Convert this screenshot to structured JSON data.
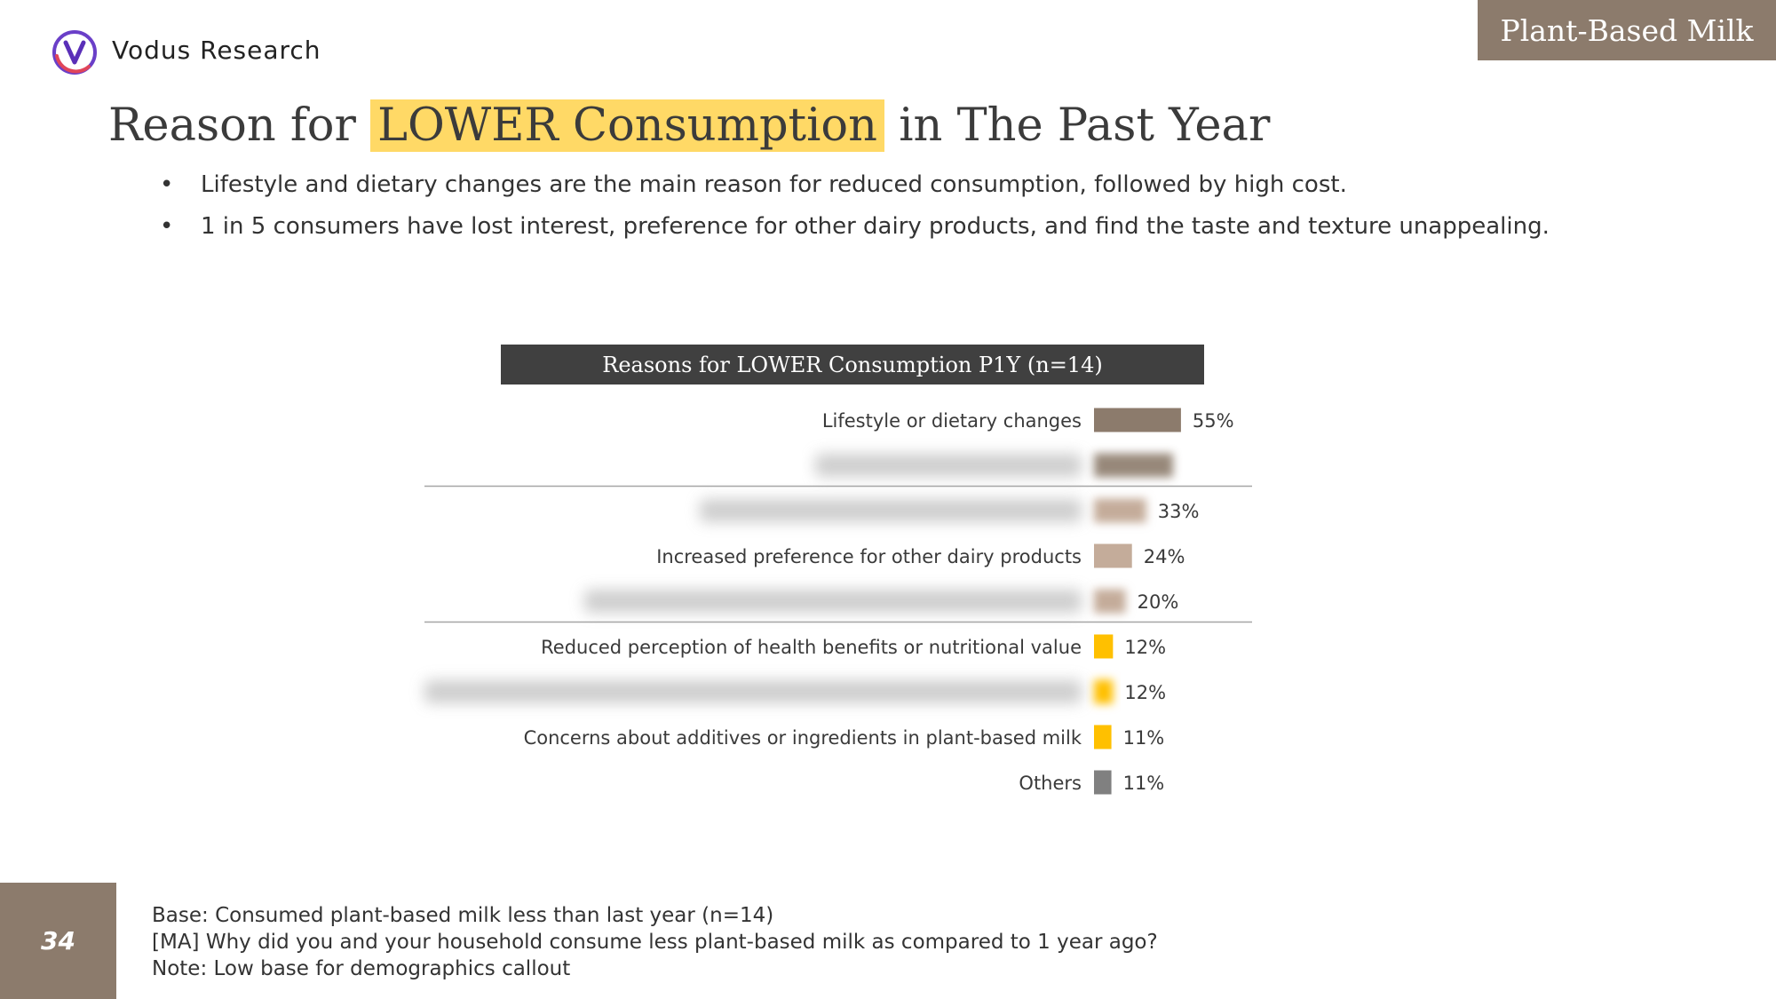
{
  "brand": {
    "name": "Vodus Research"
  },
  "tag": "Plant-Based Milk",
  "title": {
    "prefix": "Reason for ",
    "highlight": "LOWER Consumption",
    "suffix": " in The Past Year"
  },
  "bullets": [
    "Lifestyle and dietary changes are the main reason for reduced consumption, followed by high cost.",
    "1 in 5 consumers have lost interest, preference for other dairy products, and find the taste and texture unappealing."
  ],
  "chart_data": {
    "type": "bar",
    "orientation": "horizontal",
    "title": "Reasons for LOWER Consumption P1Y (n=14)",
    "categories": [
      "Lifestyle or dietary changes",
      "",
      "",
      "Increased preference for other dairy products",
      "",
      "Reduced perception of health benefits or nutritional value",
      "",
      "Concerns about additives or ingredients in plant-based milk",
      "Others"
    ],
    "values": [
      55,
      null,
      33,
      24,
      20,
      12,
      12,
      11,
      11
    ],
    "labels": [
      "55%",
      "",
      "33%",
      "24%",
      "20%",
      "12%",
      "12%",
      "11%",
      "11%"
    ],
    "blurred": [
      false,
      true,
      true,
      false,
      true,
      false,
      true,
      false,
      false
    ],
    "colors": [
      "#8c7b6c",
      "#8c7b6c",
      "#c4ac9a",
      "#c4ac9a",
      "#c4ac9a",
      "#ffc000",
      "#ffc000",
      "#ffc000",
      "#808080"
    ],
    "xlim": [
      0,
      100
    ],
    "grid": false,
    "dividers_after": [
      1,
      4
    ]
  },
  "page_number": "34",
  "footer": {
    "base": "Base: Consumed plant-based milk less than last year (n=14)",
    "question": "[MA] Why did you and your household consume less plant-based milk as compared to 1 year ago?",
    "note": "Note: Low base for demographics callout"
  },
  "colors": {
    "brand": "#8c7b6c",
    "highlight": "#ffd966",
    "header": "#404040"
  }
}
